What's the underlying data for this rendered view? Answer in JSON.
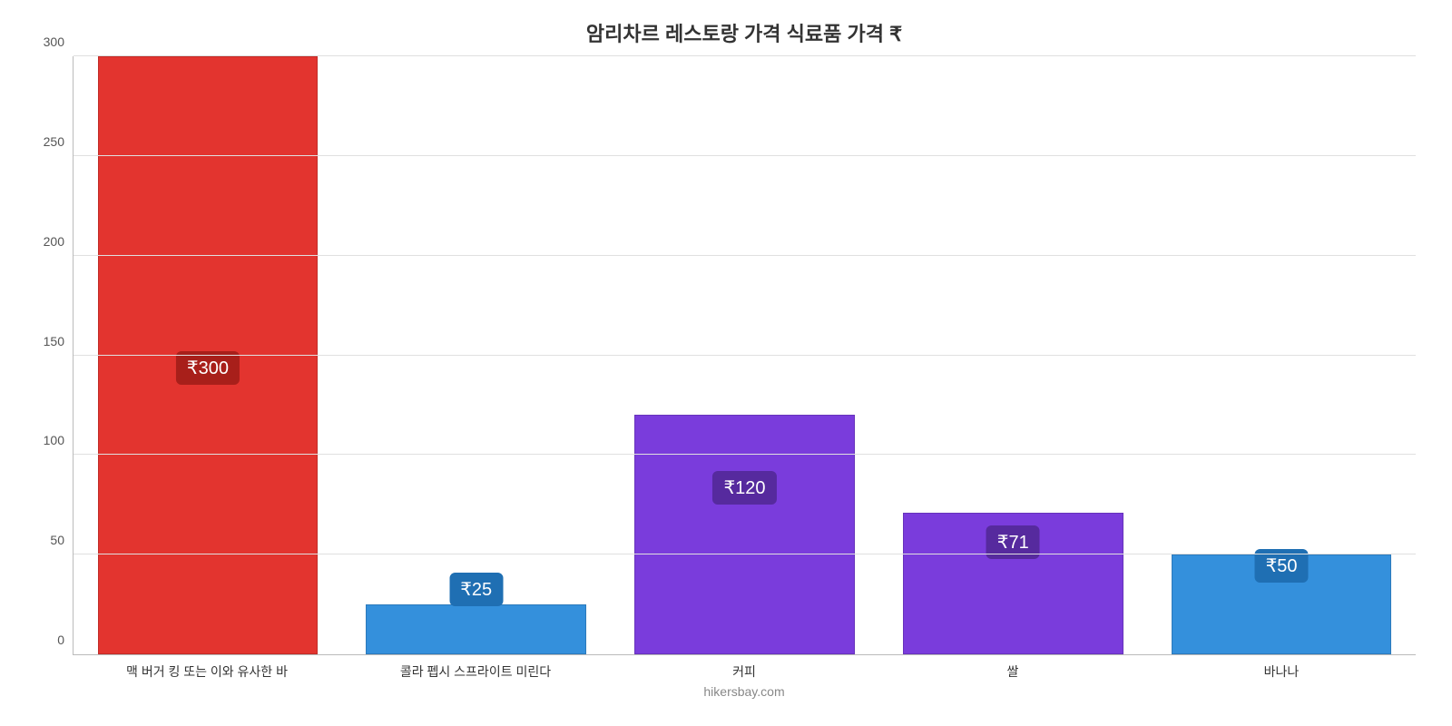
{
  "chart": {
    "type": "bar",
    "title": "암리차르 레스토랑 가격 식료품 가격 ₹",
    "title_fontsize": 22,
    "footer": "hikersbay.com",
    "background_color": "#ffffff",
    "grid_color": "#e0e0e0",
    "axis_color": "#bbbbbb",
    "ylim": [
      0,
      300
    ],
    "yticks": [
      0,
      50,
      100,
      150,
      200,
      250,
      300
    ],
    "label_fontsize": 14,
    "bar_width_pct": 82,
    "categories": [
      "맥 버거 킹 또는 이와 유사한 바",
      "콜라 펩시 스프라이트 미린다",
      "커피",
      "쌀",
      "바나나"
    ],
    "values": [
      300,
      25,
      120,
      71,
      50
    ],
    "value_labels": [
      "₹300",
      "₹25",
      "₹120",
      "₹71",
      "₹50"
    ],
    "bar_colors": [
      "#e3342f",
      "#3490dc",
      "#7a3cdc",
      "#7a3cdc",
      "#3490dc"
    ],
    "badge_colors": [
      "#a81f1a",
      "#1f6fb3",
      "#562a9e",
      "#562a9e",
      "#1f6fb3"
    ],
    "badge_fontsize": 20,
    "badge_offsets_pct": [
      45,
      8,
      25,
      16,
      12
    ]
  }
}
